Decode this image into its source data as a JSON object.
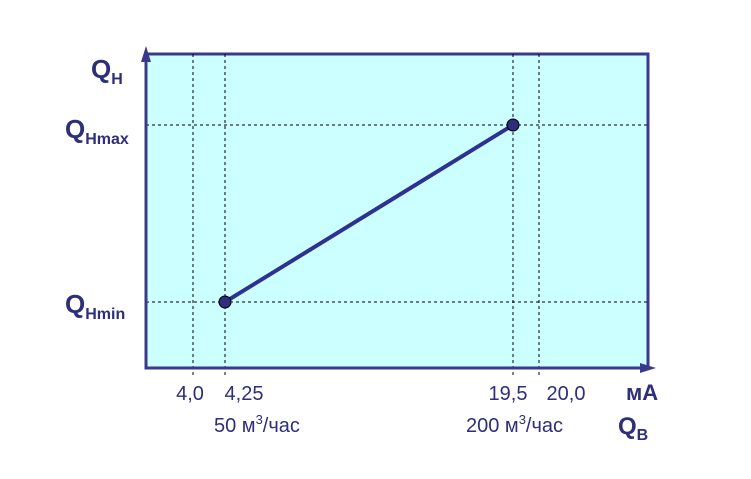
{
  "colors": {
    "plot_background": "#ccffff",
    "axis": "#3a3a8c",
    "line": "#2e3192",
    "text": "#2e2e7a",
    "grid": "#000000",
    "marker": "#2e2e7a"
  },
  "y_axis": {
    "label_main": "Q",
    "label_sub": "Н",
    "max_main": "Q",
    "max_sub": "Нmax",
    "min_main": "Q",
    "min_sub": "Нmin"
  },
  "x_axis": {
    "unit": "мА",
    "label_main": "Q",
    "label_sub": "В",
    "ticks": [
      "4,0",
      "4,25",
      "19,5",
      "20,0"
    ],
    "flow_min_prefix": "50 м",
    "flow_min_sup": "3",
    "flow_min_suffix": "/час",
    "flow_max_prefix": "200 м",
    "flow_max_sup": "3",
    "flow_max_suffix": "/час"
  },
  "chart_data": {
    "type": "line",
    "series": [
      {
        "points": [
          {
            "x": 4.25,
            "y": "QНmin"
          },
          {
            "x": 19.5,
            "y": "QНmax"
          }
        ]
      }
    ],
    "x_ticks": [
      "4,0",
      "4,25",
      "19,5",
      "20,0"
    ],
    "x_unit": "мА",
    "grid": "dashed guide lines"
  }
}
